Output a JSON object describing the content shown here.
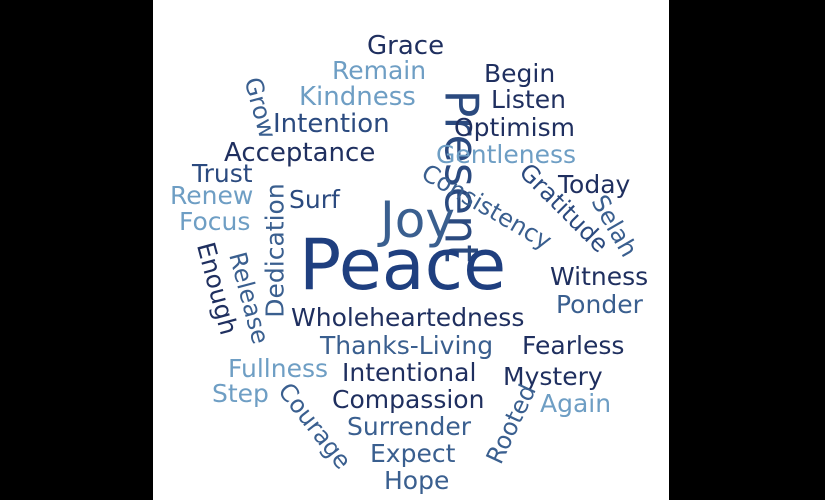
{
  "colors": {
    "frame": "#000000",
    "background": "#ffffff",
    "dark_navy": "#1f2f5f",
    "mid_blue": "#3a5f8f",
    "light_blue": "#6e9ec4"
  },
  "words": [
    {
      "id": "grace",
      "text": "Grace",
      "color": "#1f2f5f"
    },
    {
      "id": "remain",
      "text": "Remain",
      "color": "#6e9ec4"
    },
    {
      "id": "begin",
      "text": "Begin",
      "color": "#1f2f5f"
    },
    {
      "id": "present",
      "text": "Present",
      "color": "#2b4a7f"
    },
    {
      "id": "kindness",
      "text": "Kindness",
      "color": "#6e9ec4"
    },
    {
      "id": "listen",
      "text": "Listen",
      "color": "#1f2f5f"
    },
    {
      "id": "grow",
      "text": "Grow",
      "color": "#3a5f8f"
    },
    {
      "id": "intention",
      "text": "Intention",
      "color": "#2b4a7f"
    },
    {
      "id": "optimism",
      "text": "Optimism",
      "color": "#1f2f5f"
    },
    {
      "id": "acceptance",
      "text": "Acceptance",
      "color": "#1f2f5f"
    },
    {
      "id": "gentleness",
      "text": "Gentleness",
      "color": "#6e9ec4"
    },
    {
      "id": "trust",
      "text": "Trust",
      "color": "#2b4a7f"
    },
    {
      "id": "consistency",
      "text": "Consistency",
      "color": "#3a5f8f"
    },
    {
      "id": "gratitude",
      "text": "Gratitude",
      "color": "#2b4a7f"
    },
    {
      "id": "today",
      "text": "Today",
      "color": "#1f2f5f"
    },
    {
      "id": "selah",
      "text": "Selah",
      "color": "#3a5f8f"
    },
    {
      "id": "renew",
      "text": "Renew",
      "color": "#6e9ec4"
    },
    {
      "id": "surf",
      "text": "Surf",
      "color": "#2b4a7f"
    },
    {
      "id": "joy",
      "text": "Joy",
      "color": "#3a5f8f"
    },
    {
      "id": "focus",
      "text": "Focus",
      "color": "#6e9ec4"
    },
    {
      "id": "dedication",
      "text": "Dedication",
      "color": "#3a5f8f"
    },
    {
      "id": "enough",
      "text": "Enough",
      "color": "#1f2f5f"
    },
    {
      "id": "peace",
      "text": "Peace",
      "color": "#1f3f7f"
    },
    {
      "id": "witness",
      "text": "Witness",
      "color": "#1f2f5f"
    },
    {
      "id": "release",
      "text": "Release",
      "color": "#3a5f8f"
    },
    {
      "id": "ponder",
      "text": "Ponder",
      "color": "#3a5f8f"
    },
    {
      "id": "wholeheartedness",
      "text": "Wholeheartedness",
      "color": "#1f2f5f"
    },
    {
      "id": "thanks_living",
      "text": "Thanks-Living",
      "color": "#3a5f8f"
    },
    {
      "id": "fearless",
      "text": "Fearless",
      "color": "#1f2f5f"
    },
    {
      "id": "fullness",
      "text": "Fullness",
      "color": "#6e9ec4"
    },
    {
      "id": "intentional",
      "text": "Intentional",
      "color": "#1f2f5f"
    },
    {
      "id": "mystery",
      "text": "Mystery",
      "color": "#1f2f5f"
    },
    {
      "id": "step",
      "text": "Step",
      "color": "#6e9ec4"
    },
    {
      "id": "compassion",
      "text": "Compassion",
      "color": "#1f2f5f"
    },
    {
      "id": "again",
      "text": "Again",
      "color": "#6e9ec4"
    },
    {
      "id": "courage",
      "text": "Courage",
      "color": "#3a5f8f"
    },
    {
      "id": "surrender",
      "text": "Surrender",
      "color": "#3a5f8f"
    },
    {
      "id": "rooted",
      "text": "Rooted",
      "color": "#3a5f8f"
    },
    {
      "id": "expect",
      "text": "Expect",
      "color": "#3a5f8f"
    },
    {
      "id": "hope",
      "text": "Hope",
      "color": "#3a5f8f"
    }
  ]
}
